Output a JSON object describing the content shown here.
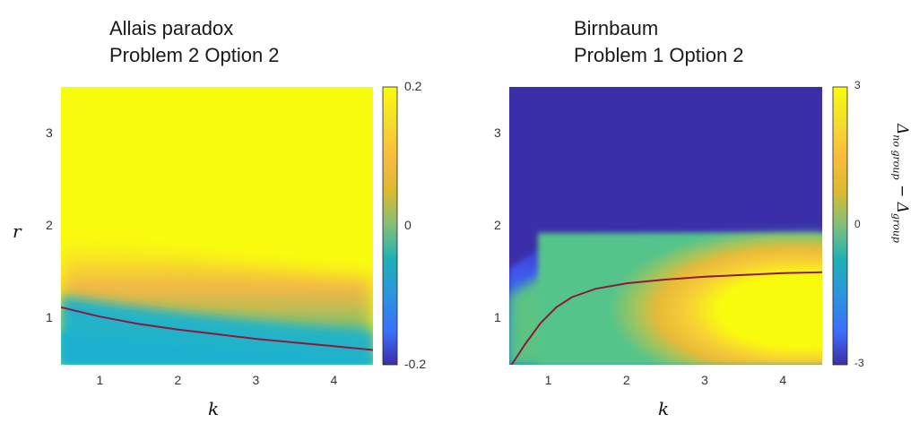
{
  "chart_data": [
    {
      "type": "heatmap",
      "title_lines": [
        "Allais paradox",
        "Problem 2 Option 2"
      ],
      "xlabel": "k",
      "ylabel": "r",
      "xlim": [
        0.5,
        4.5
      ],
      "ylim": [
        0.5,
        3.5
      ],
      "xticks": [
        "1",
        "2",
        "3",
        "4"
      ],
      "yticks": [
        "1",
        "2",
        "3"
      ],
      "colorbar": {
        "min": -0.2,
        "max": 0.2,
        "ticks": [
          "0.2",
          "0",
          "-0.2"
        ],
        "colormap": "parula"
      },
      "boundary_curve": {
        "color": "#8b1a3a",
        "x": [
          0.5,
          1,
          1.5,
          2,
          2.5,
          3,
          3.5,
          4,
          4.5
        ],
        "y": [
          1.12,
          1.02,
          0.94,
          0.88,
          0.83,
          0.78,
          0.74,
          0.7,
          0.66
        ]
      }
    },
    {
      "type": "heatmap",
      "title_lines": [
        "Birnbaum",
        "Problem 1 Option 2"
      ],
      "xlabel": "k",
      "ylabel": "",
      "xlim": [
        0.5,
        4.5
      ],
      "ylim": [
        0.5,
        3.5
      ],
      "xticks": [
        "1",
        "2",
        "3",
        "4"
      ],
      "yticks": [
        "1",
        "2",
        "3"
      ],
      "colorbar": {
        "min": -3,
        "max": 3,
        "ticks": [
          "3",
          "0",
          "-3"
        ],
        "colormap": "parula"
      },
      "boundary_curve": {
        "color": "#8b1a3a",
        "x": [
          0.53,
          0.7,
          0.9,
          1.1,
          1.3,
          1.6,
          2,
          2.5,
          3,
          3.5,
          4,
          4.5
        ],
        "y": [
          0.5,
          0.72,
          0.95,
          1.12,
          1.23,
          1.32,
          1.38,
          1.42,
          1.45,
          1.47,
          1.49,
          1.5
        ]
      }
    }
  ],
  "colorbar_label": {
    "delta": "Δ",
    "sub_no_group": "no group",
    "minus": " − ",
    "sub_group": "group"
  }
}
